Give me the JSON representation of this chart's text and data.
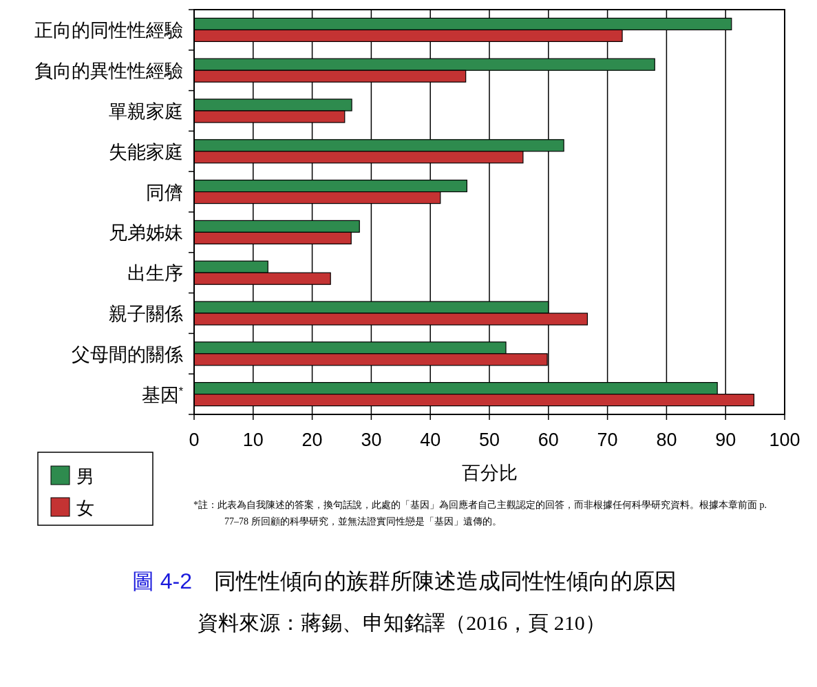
{
  "chart_data": {
    "type": "bar",
    "orientation": "horizontal",
    "title": "圖 4-2　同性性傾向的族群所陳述造成同性性傾向的原因",
    "categories": [
      "正向的同性性經驗",
      "負向的異性性經驗",
      "單親家庭",
      "失能家庭",
      "同儕",
      "兄弟姊妹",
      "出生序",
      "親子關係",
      "父母間的關係",
      "基因$^{*}$"
    ],
    "series": [
      {
        "name": "男",
        "color": "#2e8b4e",
        "values": [
          91,
          78,
          26.7,
          62.6,
          46.2,
          28,
          12.5,
          60,
          52.8,
          88.6
        ]
      },
      {
        "name": "女",
        "color": "#c43333",
        "values": [
          72.5,
          46,
          25.5,
          55.7,
          41.7,
          26.6,
          23.1,
          66.6,
          59.8,
          94.8
        ]
      }
    ],
    "xlim": [
      0,
      100
    ],
    "xticks": [
      0,
      10,
      20,
      30,
      40,
      50,
      60,
      70,
      80,
      90,
      100
    ],
    "xlabel": "百分比",
    "grid": "x",
    "legend": "bottom left",
    "annotations": [
      "*註：此表為自我陳述的答案，換句話說，此處的「基因」為回應者自己主觀認定的回答，而非根據任何科學研究資料。根據本章前面 p. 77–78 所回顧的科學研究，並無法證實同性戀是「基因」遺傳的。",
      "資料來源：蔣錫、申知銘譯（2016，頁 210）"
    ]
  }
}
